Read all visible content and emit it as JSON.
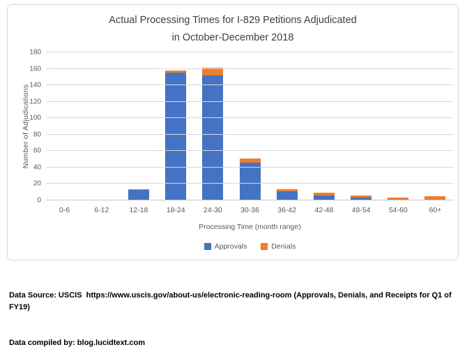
{
  "title": {
    "line1": "Actual Processing Times for I-829 Petitions Adjudicated",
    "line2": "in October-December 2018"
  },
  "chart_data": {
    "type": "bar",
    "stacked": true,
    "title": "Actual Processing Times for I-829 Petitions Adjudicated in October-December 2018",
    "categories": [
      "0-6",
      "6-12",
      "12-18",
      "18-24",
      "24-30",
      "30-36",
      "36-42",
      "42-48",
      "48-54",
      "54-60",
      "60+"
    ],
    "series": [
      {
        "name": "Approvals",
        "color": "#4472C4",
        "values": [
          0,
          0,
          13,
          155,
          152,
          46,
          11,
          6,
          3,
          1,
          0
        ]
      },
      {
        "name": "Denials",
        "color": "#ED7D31",
        "values": [
          0,
          0,
          1,
          3,
          9,
          5,
          3,
          3,
          3,
          2,
          5
        ]
      }
    ],
    "xlabel": "Processing Time (month range)",
    "ylabel": "Number  of  Adjudications",
    "ylim": [
      0,
      180
    ],
    "yticks": [
      0,
      20,
      40,
      60,
      80,
      100,
      120,
      140,
      160,
      180
    ],
    "grid": true,
    "legend_position": "bottom",
    "colors": {
      "gridline": "#D9D9D9",
      "text": "#595959",
      "title": "#404040"
    }
  },
  "footer": {
    "line1": "Data Source: USCIS  https://www.uscis.gov/about-us/electronic-reading-room (Approvals, Denials, and Receipts for Q1 of FY19)",
    "line2": "Data compiled by: blog.lucidtext.com"
  }
}
